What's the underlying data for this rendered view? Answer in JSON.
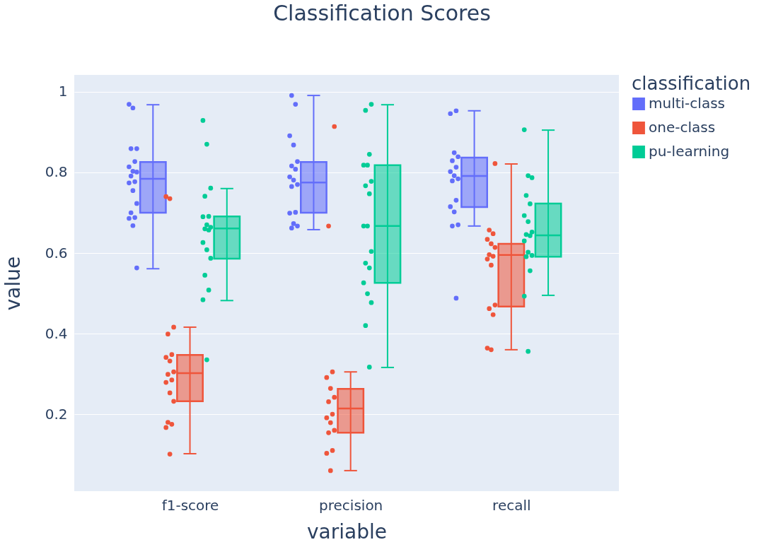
{
  "chart_data": {
    "type": "box",
    "title": "Classification Scores",
    "xlabel": "variable",
    "ylabel": "value",
    "legend_title": "classification",
    "legend": "top right",
    "grid": "y",
    "categories": [
      "f1-score",
      "precision",
      "recall"
    ],
    "ylim": [
      0.009,
      1.042
    ],
    "yticks": [
      0.2,
      0.4,
      0.6,
      0.8,
      1
    ],
    "series": [
      {
        "name": "multi-class",
        "color": "#636efa",
        "boxes": [
          {
            "low": 0.561,
            "q1": 0.7,
            "median": 0.784,
            "q3": 0.826,
            "high": 0.968
          },
          {
            "low": 0.658,
            "q1": 0.7,
            "median": 0.775,
            "q3": 0.826,
            "high": 0.991
          },
          {
            "low": 0.667,
            "q1": 0.714,
            "median": 0.791,
            "q3": 0.837,
            "high": 0.953
          }
        ]
      },
      {
        "name": "one-class",
        "color": "#ef553b",
        "boxes": [
          {
            "low": 0.102,
            "q1": 0.232,
            "median": 0.302,
            "q3": 0.347,
            "high": 0.416
          },
          {
            "low": 0.06,
            "q1": 0.154,
            "median": 0.214,
            "q3": 0.263,
            "high": 0.305
          },
          {
            "low": 0.36,
            "q1": 0.467,
            "median": 0.595,
            "q3": 0.623,
            "high": 0.821
          }
        ]
      },
      {
        "name": "pu-learning",
        "color": "#00cc96",
        "boxes": [
          {
            "low": 0.482,
            "q1": 0.586,
            "median": 0.661,
            "q3": 0.691,
            "high": 0.76
          },
          {
            "low": 0.316,
            "q1": 0.526,
            "median": 0.667,
            "q3": 0.818,
            "high": 0.968
          },
          {
            "low": 0.495,
            "q1": 0.591,
            "median": 0.644,
            "q3": 0.723,
            "high": 0.905
          }
        ]
      },
      {
        "type": "scatter",
        "color": "#636efa",
        "x": [
          "f1-score",
          "f1-score",
          "f1-score",
          "f1-score",
          "f1-score",
          "f1-score",
          "f1-score",
          "f1-score",
          "f1-score",
          "f1-score",
          "f1-score",
          "f1-score",
          "f1-score",
          "f1-score",
          "f1-score",
          "f1-score",
          "f1-score",
          "f1-score",
          "precision",
          "precision",
          "precision",
          "precision",
          "precision",
          "precision",
          "precision",
          "precision",
          "precision",
          "precision",
          "precision",
          "precision",
          "precision",
          "precision",
          "precision",
          "precision",
          "recall",
          "recall",
          "recall",
          "recall",
          "recall",
          "recall",
          "recall",
          "recall",
          "recall",
          "recall",
          "recall",
          "recall",
          "recall",
          "recall",
          "recall",
          "recall"
        ],
        "values": [
          0.969,
          0.96,
          0.859,
          0.859,
          0.827,
          0.814,
          0.803,
          0.801,
          0.791,
          0.777,
          0.774,
          0.755,
          0.723,
          0.7,
          0.688,
          0.686,
          0.668,
          0.563,
          0.991,
          0.969,
          0.891,
          0.868,
          0.827,
          0.816,
          0.808,
          0.789,
          0.781,
          0.77,
          0.765,
          0.701,
          0.699,
          0.673,
          0.667,
          0.662,
          0.953,
          0.946,
          0.849,
          0.839,
          0.829,
          0.813,
          0.802,
          0.792,
          0.784,
          0.779,
          0.731,
          0.715,
          0.702,
          0.67,
          0.667,
          0.488
        ]
      },
      {
        "type": "scatter",
        "color": "#ef553b",
        "x": [
          "f1-score",
          "f1-score",
          "f1-score",
          "f1-score",
          "f1-score",
          "f1-score",
          "f1-score",
          "f1-score",
          "f1-score",
          "f1-score",
          "f1-score",
          "f1-score",
          "f1-score",
          "f1-score",
          "f1-score",
          "f1-score",
          "f1-score",
          "precision",
          "precision",
          "precision",
          "precision",
          "precision",
          "precision",
          "precision",
          "precision",
          "precision",
          "precision",
          "precision",
          "precision",
          "precision",
          "precision",
          "precision",
          "recall",
          "recall",
          "recall",
          "recall",
          "recall",
          "recall",
          "recall",
          "recall",
          "recall",
          "recall",
          "recall",
          "recall",
          "recall",
          "recall",
          "recall"
        ],
        "values": [
          0.74,
          0.735,
          0.416,
          0.399,
          0.348,
          0.341,
          0.332,
          0.305,
          0.299,
          0.285,
          0.279,
          0.253,
          0.232,
          0.18,
          0.175,
          0.167,
          0.101,
          0.914,
          0.667,
          0.305,
          0.291,
          0.264,
          0.242,
          0.231,
          0.2,
          0.191,
          0.179,
          0.16,
          0.154,
          0.11,
          0.103,
          0.06,
          0.822,
          0.657,
          0.648,
          0.634,
          0.623,
          0.614,
          0.596,
          0.592,
          0.585,
          0.57,
          0.471,
          0.462,
          0.447,
          0.364,
          0.36
        ]
      },
      {
        "type": "scatter",
        "color": "#00cc96",
        "x": [
          "f1-score",
          "f1-score",
          "f1-score",
          "f1-score",
          "f1-score",
          "f1-score",
          "f1-score",
          "f1-score",
          "f1-score",
          "f1-score",
          "f1-score",
          "f1-score",
          "f1-score",
          "f1-score",
          "f1-score",
          "f1-score",
          "f1-score",
          "precision",
          "precision",
          "precision",
          "precision",
          "precision",
          "precision",
          "precision",
          "precision",
          "precision",
          "precision",
          "precision",
          "precision",
          "precision",
          "precision",
          "precision",
          "precision",
          "precision",
          "precision",
          "recall",
          "recall",
          "recall",
          "recall",
          "recall",
          "recall",
          "recall",
          "recall",
          "recall",
          "recall",
          "recall",
          "recall",
          "recall",
          "recall",
          "recall",
          "recall",
          "recall"
        ],
        "values": [
          0.929,
          0.87,
          0.761,
          0.741,
          0.691,
          0.69,
          0.67,
          0.664,
          0.66,
          0.657,
          0.626,
          0.608,
          0.587,
          0.545,
          0.508,
          0.484,
          0.335,
          0.969,
          0.954,
          0.845,
          0.818,
          0.818,
          0.778,
          0.767,
          0.747,
          0.667,
          0.667,
          0.604,
          0.575,
          0.563,
          0.526,
          0.499,
          0.477,
          0.42,
          0.317,
          0.906,
          0.792,
          0.787,
          0.743,
          0.722,
          0.693,
          0.678,
          0.652,
          0.646,
          0.643,
          0.63,
          0.602,
          0.594,
          0.591,
          0.556,
          0.493,
          0.356
        ]
      }
    ]
  }
}
